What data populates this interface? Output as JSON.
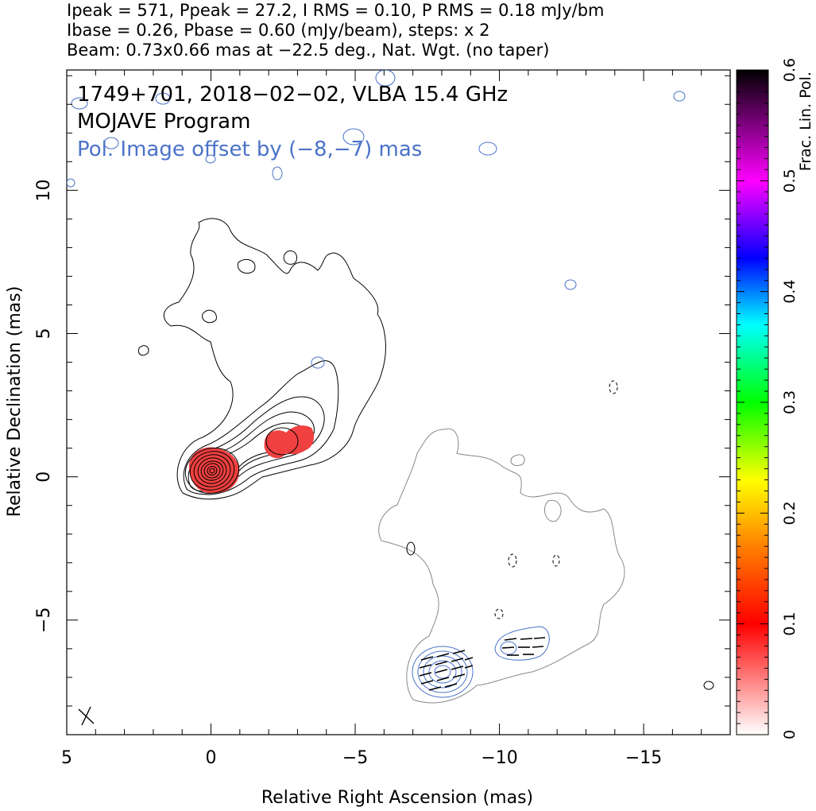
{
  "header": {
    "line1": "Ipeak = 571, Ppeak = 27.2, I RMS = 0.10, P RMS = 0.18 mJy/bm",
    "line2": "Ibase = 0.26, Pbase = 0.60 (mJy/beam), steps: x 2",
    "line3": "Beam: 0.73x0.66 mas at −22.5 deg., Nat. Wgt. (no taper)"
  },
  "chart_data": {
    "type": "contour",
    "title": "1749+701, 2018−02−02, VLBA 15.4 GHz",
    "subtitle": "MOJAVE Program",
    "annotation": "Pol. Image offset by (−8,−7) mas",
    "xlabel": "Relative Right Ascension (mas)",
    "ylabel": "Relative Declination (mas)",
    "xlim": [
      5,
      -18
    ],
    "ylim": [
      -9,
      14.2
    ],
    "x_ticks": [
      5,
      0,
      -5,
      -10,
      -15
    ],
    "x_tick_labels": [
      "5",
      "0",
      "−5",
      "−10",
      "−15"
    ],
    "y_ticks": [
      -5,
      0,
      5,
      10
    ],
    "y_tick_labels": [
      "−5",
      "0",
      "5",
      "10"
    ],
    "stats": {
      "Ipeak": 571,
      "Ppeak": 27.2,
      "I_RMS": 0.1,
      "P_RMS": 0.18,
      "Ibase": 0.26,
      "Pbase": 0.6,
      "contour_step": 2
    },
    "beam": {
      "major_mas": 0.73,
      "minor_mas": 0.66,
      "pa_deg": -22.5,
      "weighting": "Nat. Wgt. (no taper)"
    },
    "total_intensity_core": {
      "x": 0,
      "y": 0,
      "levels": 8
    },
    "total_intensity_jet_peak": {
      "x": -2.5,
      "y": 1.0
    },
    "polarization_offset_mas": [
      -8,
      -7
    ],
    "pol_core": {
      "x": -8.0,
      "y": -6.9
    },
    "pol_knot": {
      "x": -10.5,
      "y": -6.0
    },
    "colorbar": {
      "label": "Frac. Lin. Pol.",
      "min": 0,
      "max": 0.6,
      "ticks": [
        0,
        0.1,
        0.2,
        0.3,
        0.4,
        0.5,
        0.6
      ],
      "tick_labels": [
        "0",
        "0.1",
        "0.2",
        "0.3",
        "0.4",
        "0.5",
        "0.6"
      ],
      "stops": [
        [
          0.0,
          "#ffffff"
        ],
        [
          0.1,
          "#ff0000"
        ],
        [
          0.17,
          "#ff8000"
        ],
        [
          0.23,
          "#ffff00"
        ],
        [
          0.3,
          "#00ff00"
        ],
        [
          0.37,
          "#00ffff"
        ],
        [
          0.43,
          "#0000ff"
        ],
        [
          0.5,
          "#ff00ff"
        ],
        [
          0.6,
          "#000000"
        ]
      ]
    },
    "colors": {
      "total_intensity": "#000000",
      "pol_contour": "#4a72c8",
      "pol_offset_contour": "#888888",
      "annotation_blue": "#4a72c8",
      "frac_pol_fill": "#f04040"
    }
  }
}
